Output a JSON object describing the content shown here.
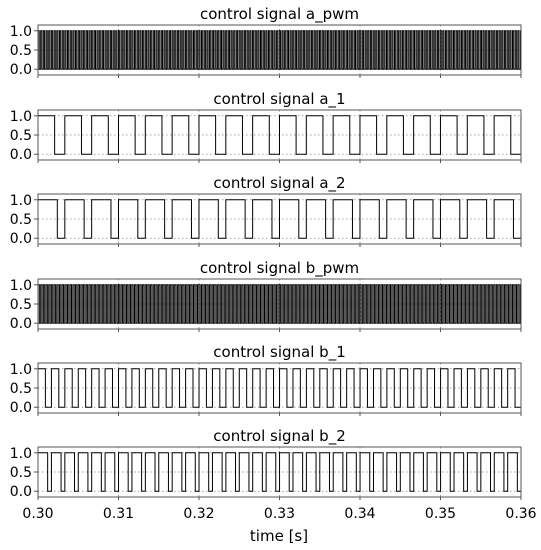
{
  "chart_data": [
    {
      "type": "line",
      "title": "control signal a_pwm",
      "xlim": [
        0.3,
        0.36
      ],
      "ylim": [
        -0.15,
        1.15
      ],
      "yticks": [
        0.0,
        0.5,
        1.0
      ],
      "ytick_labels": [
        "0.0",
        "0.5",
        "1.0"
      ],
      "grid": true,
      "waveform": "square",
      "period_s": 0.000333,
      "duty": 0.45
    },
    {
      "type": "line",
      "title": "control signal a_1",
      "xlim": [
        0.3,
        0.36
      ],
      "ylim": [
        -0.15,
        1.15
      ],
      "yticks": [
        0.0,
        0.5,
        1.0
      ],
      "ytick_labels": [
        "0.0",
        "0.5",
        "1.0"
      ],
      "grid": true,
      "waveform": "square",
      "period_s": 0.003333,
      "duty": 0.62
    },
    {
      "type": "line",
      "title": "control signal a_2",
      "xlim": [
        0.3,
        0.36
      ],
      "ylim": [
        -0.15,
        1.15
      ],
      "yticks": [
        0.0,
        0.5,
        1.0
      ],
      "ytick_labels": [
        "0.0",
        "0.5",
        "1.0"
      ],
      "grid": true,
      "waveform": "square",
      "period_s": 0.003333,
      "duty": 0.72
    },
    {
      "type": "line",
      "title": "control signal b_pwm",
      "xlim": [
        0.3,
        0.36
      ],
      "ylim": [
        -0.15,
        1.15
      ],
      "yticks": [
        0.0,
        0.5,
        1.0
      ],
      "ytick_labels": [
        "0.0",
        "0.5",
        "1.0"
      ],
      "grid": true,
      "waveform": "square",
      "period_s": 0.000333,
      "duty": 0.5
    },
    {
      "type": "line",
      "title": "control signal b_1",
      "xlim": [
        0.3,
        0.36
      ],
      "ylim": [
        -0.15,
        1.15
      ],
      "yticks": [
        0.0,
        0.5,
        1.0
      ],
      "ytick_labels": [
        "0.0",
        "0.5",
        "1.0"
      ],
      "grid": true,
      "waveform": "square",
      "period_s": 0.001667,
      "duty": 0.55
    },
    {
      "type": "line",
      "title": "control signal b_2",
      "xlim": [
        0.3,
        0.36
      ],
      "ylim": [
        -0.15,
        1.15
      ],
      "yticks": [
        0.0,
        0.5,
        1.0
      ],
      "ytick_labels": [
        "0.0",
        "0.5",
        "1.0"
      ],
      "grid": true,
      "waveform": "square",
      "period_s": 0.001667,
      "duty": 0.72
    }
  ],
  "x_axis": {
    "ticks": [
      0.3,
      0.31,
      0.32,
      0.33,
      0.34,
      0.35,
      0.36
    ],
    "tick_labels": [
      "0.30",
      "0.31",
      "0.32",
      "0.33",
      "0.34",
      "0.35",
      "0.36"
    ],
    "label": "time [s]"
  }
}
